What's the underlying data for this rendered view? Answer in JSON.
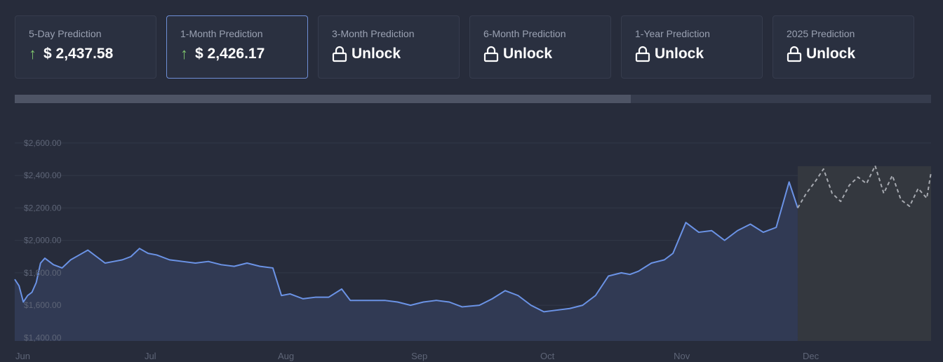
{
  "cards": [
    {
      "label": "5-Day Prediction",
      "value": "$ 2,437.58",
      "status": "up",
      "icon": "arrow-up-icon"
    },
    {
      "label": "1-Month Prediction",
      "value": "$ 2,426.17",
      "status": "up",
      "icon": "arrow-up-icon"
    },
    {
      "label": "3-Month Prediction",
      "value": "Unlock",
      "status": "locked",
      "icon": "lock-icon"
    },
    {
      "label": "6-Month Prediction",
      "value": "Unlock",
      "status": "locked",
      "icon": "lock-icon"
    },
    {
      "label": "1-Year Prediction",
      "value": "Unlock",
      "status": "locked",
      "icon": "lock-icon"
    },
    {
      "label": "2025 Prediction",
      "value": "Unlock",
      "status": "locked",
      "icon": "lock-icon"
    }
  ],
  "active_card": 1,
  "progress": 0.672,
  "colors": {
    "background": "#272c3b",
    "line": "#6b93e6",
    "area": "#323b55",
    "forecast_line": "#a6a9b0",
    "forecast_area": "#34383f",
    "up_arrow": "#7ec46d",
    "active_border": "#6f8fd6"
  },
  "chart_data": {
    "type": "line",
    "title": "",
    "xlabel": "",
    "ylabel": "",
    "x_range": [
      "2023-06-01",
      "2023-12-31"
    ],
    "ylim": [
      1380,
      2660
    ],
    "y_ticks": [
      1400,
      1600,
      1800,
      2000,
      2200,
      2400,
      2600
    ],
    "y_tick_labels": [
      "$1,400.00",
      "$1,600.00",
      "$1,800.00",
      "$2,000.00",
      "$2,200.00",
      "$2,400.00",
      "$2,600.00"
    ],
    "x_ticks": [
      "2023-06-01",
      "2023-07-01",
      "2023-08-01",
      "2023-09-01",
      "2023-10-01",
      "2023-11-01",
      "2023-12-01"
    ],
    "x_tick_labels": [
      "Jun",
      "Jul",
      "Aug",
      "Sep",
      "Oct",
      "Nov",
      "Dec"
    ],
    "grid": true,
    "series": [
      {
        "kind": "historical",
        "x": [
          "2023-06-01",
          "2023-06-02",
          "2023-06-03",
          "2023-06-04",
          "2023-06-05",
          "2023-06-06",
          "2023-06-07",
          "2023-06-08",
          "2023-06-09",
          "2023-06-10",
          "2023-06-12",
          "2023-06-14",
          "2023-06-16",
          "2023-06-18",
          "2023-06-20",
          "2023-06-22",
          "2023-06-24",
          "2023-06-26",
          "2023-06-28",
          "2023-06-30",
          "2023-07-02",
          "2023-07-04",
          "2023-07-07",
          "2023-07-10",
          "2023-07-13",
          "2023-07-16",
          "2023-07-19",
          "2023-07-22",
          "2023-07-25",
          "2023-07-28",
          "2023-07-31",
          "2023-08-02",
          "2023-08-04",
          "2023-08-07",
          "2023-08-10",
          "2023-08-13",
          "2023-08-16",
          "2023-08-18",
          "2023-08-22",
          "2023-08-26",
          "2023-08-29",
          "2023-09-01",
          "2023-09-04",
          "2023-09-07",
          "2023-09-10",
          "2023-09-13",
          "2023-09-17",
          "2023-09-20",
          "2023-09-23",
          "2023-09-26",
          "2023-09-29",
          "2023-10-02",
          "2023-10-05",
          "2023-10-08",
          "2023-10-11",
          "2023-10-14",
          "2023-10-17",
          "2023-10-20",
          "2023-10-22",
          "2023-10-24",
          "2023-10-27",
          "2023-10-30",
          "2023-11-01",
          "2023-11-04",
          "2023-11-07",
          "2023-11-10",
          "2023-11-13",
          "2023-11-16",
          "2023-11-19",
          "2023-11-22",
          "2023-11-25",
          "2023-11-28",
          "2023-11-30"
        ],
        "y": [
          1760,
          1720,
          1620,
          1660,
          1680,
          1740,
          1860,
          1890,
          1870,
          1850,
          1830,
          1880,
          1910,
          1940,
          1900,
          1860,
          1870,
          1880,
          1900,
          1950,
          1920,
          1910,
          1880,
          1870,
          1860,
          1870,
          1850,
          1840,
          1860,
          1840,
          1830,
          1660,
          1670,
          1640,
          1650,
          1650,
          1700,
          1630,
          1630,
          1630,
          1620,
          1600,
          1620,
          1630,
          1620,
          1590,
          1600,
          1640,
          1690,
          1660,
          1600,
          1560,
          1570,
          1580,
          1600,
          1660,
          1780,
          1800,
          1790,
          1810,
          1860,
          1880,
          1920,
          2110,
          2050,
          2060,
          2000,
          2060,
          2100,
          2050,
          2080,
          2360,
          2200
        ],
        "estimated": true
      },
      {
        "kind": "forecast",
        "x": [
          "2023-11-30",
          "2023-12-02",
          "2023-12-04",
          "2023-12-06",
          "2023-12-08",
          "2023-12-10",
          "2023-12-12",
          "2023-12-14",
          "2023-12-16",
          "2023-12-18",
          "2023-12-20",
          "2023-12-22",
          "2023-12-24",
          "2023-12-26",
          "2023-12-28",
          "2023-12-30",
          "2023-12-31"
        ],
        "y": [
          2200,
          2290,
          2360,
          2440,
          2290,
          2240,
          2340,
          2390,
          2350,
          2460,
          2290,
          2400,
          2250,
          2210,
          2320,
          2260,
          2420
        ],
        "estimated": true
      }
    ]
  }
}
